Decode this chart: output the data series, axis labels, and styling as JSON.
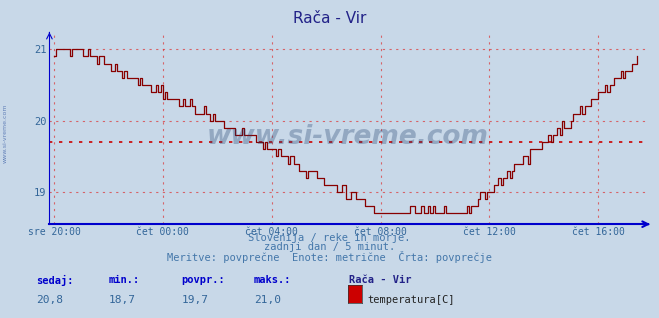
{
  "title": "Rača - Vir",
  "bg_color": "#c8d8e8",
  "plot_bg_color": "#c8d8e8",
  "line_color": "#880000",
  "avg_line_color": "#cc0000",
  "avg_value": 19.7,
  "y_min": 18.55,
  "y_max": 21.2,
  "y_ticks": [
    19,
    20,
    21
  ],
  "x_tick_labels": [
    "sre 20:00",
    "čet 00:00",
    "čet 04:00",
    "čet 08:00",
    "čet 12:00",
    "čet 16:00"
  ],
  "grid_color": "#dd3333",
  "axis_color": "#0000cc",
  "label_color": "#336699",
  "footer_line1": "Slovenija / reke in morje.",
  "footer_line2": "zadnji dan / 5 minut.",
  "footer_line3": "Meritve: povprečne  Enote: metrične  Črta: povprečje",
  "sedaj": "20,8",
  "min_val": "18,7",
  "povpr": "19,7",
  "maks": "21,0",
  "station": "Rača - Vir",
  "legend_label": "temperatura[C]",
  "legend_color": "#cc0000",
  "watermark_text": "www.si-vreme.com",
  "watermark_color": "#1a3a6a",
  "watermark_alpha": 0.3,
  "sidebar_text": "www.si-vreme.com",
  "sidebar_color": "#4466aa"
}
